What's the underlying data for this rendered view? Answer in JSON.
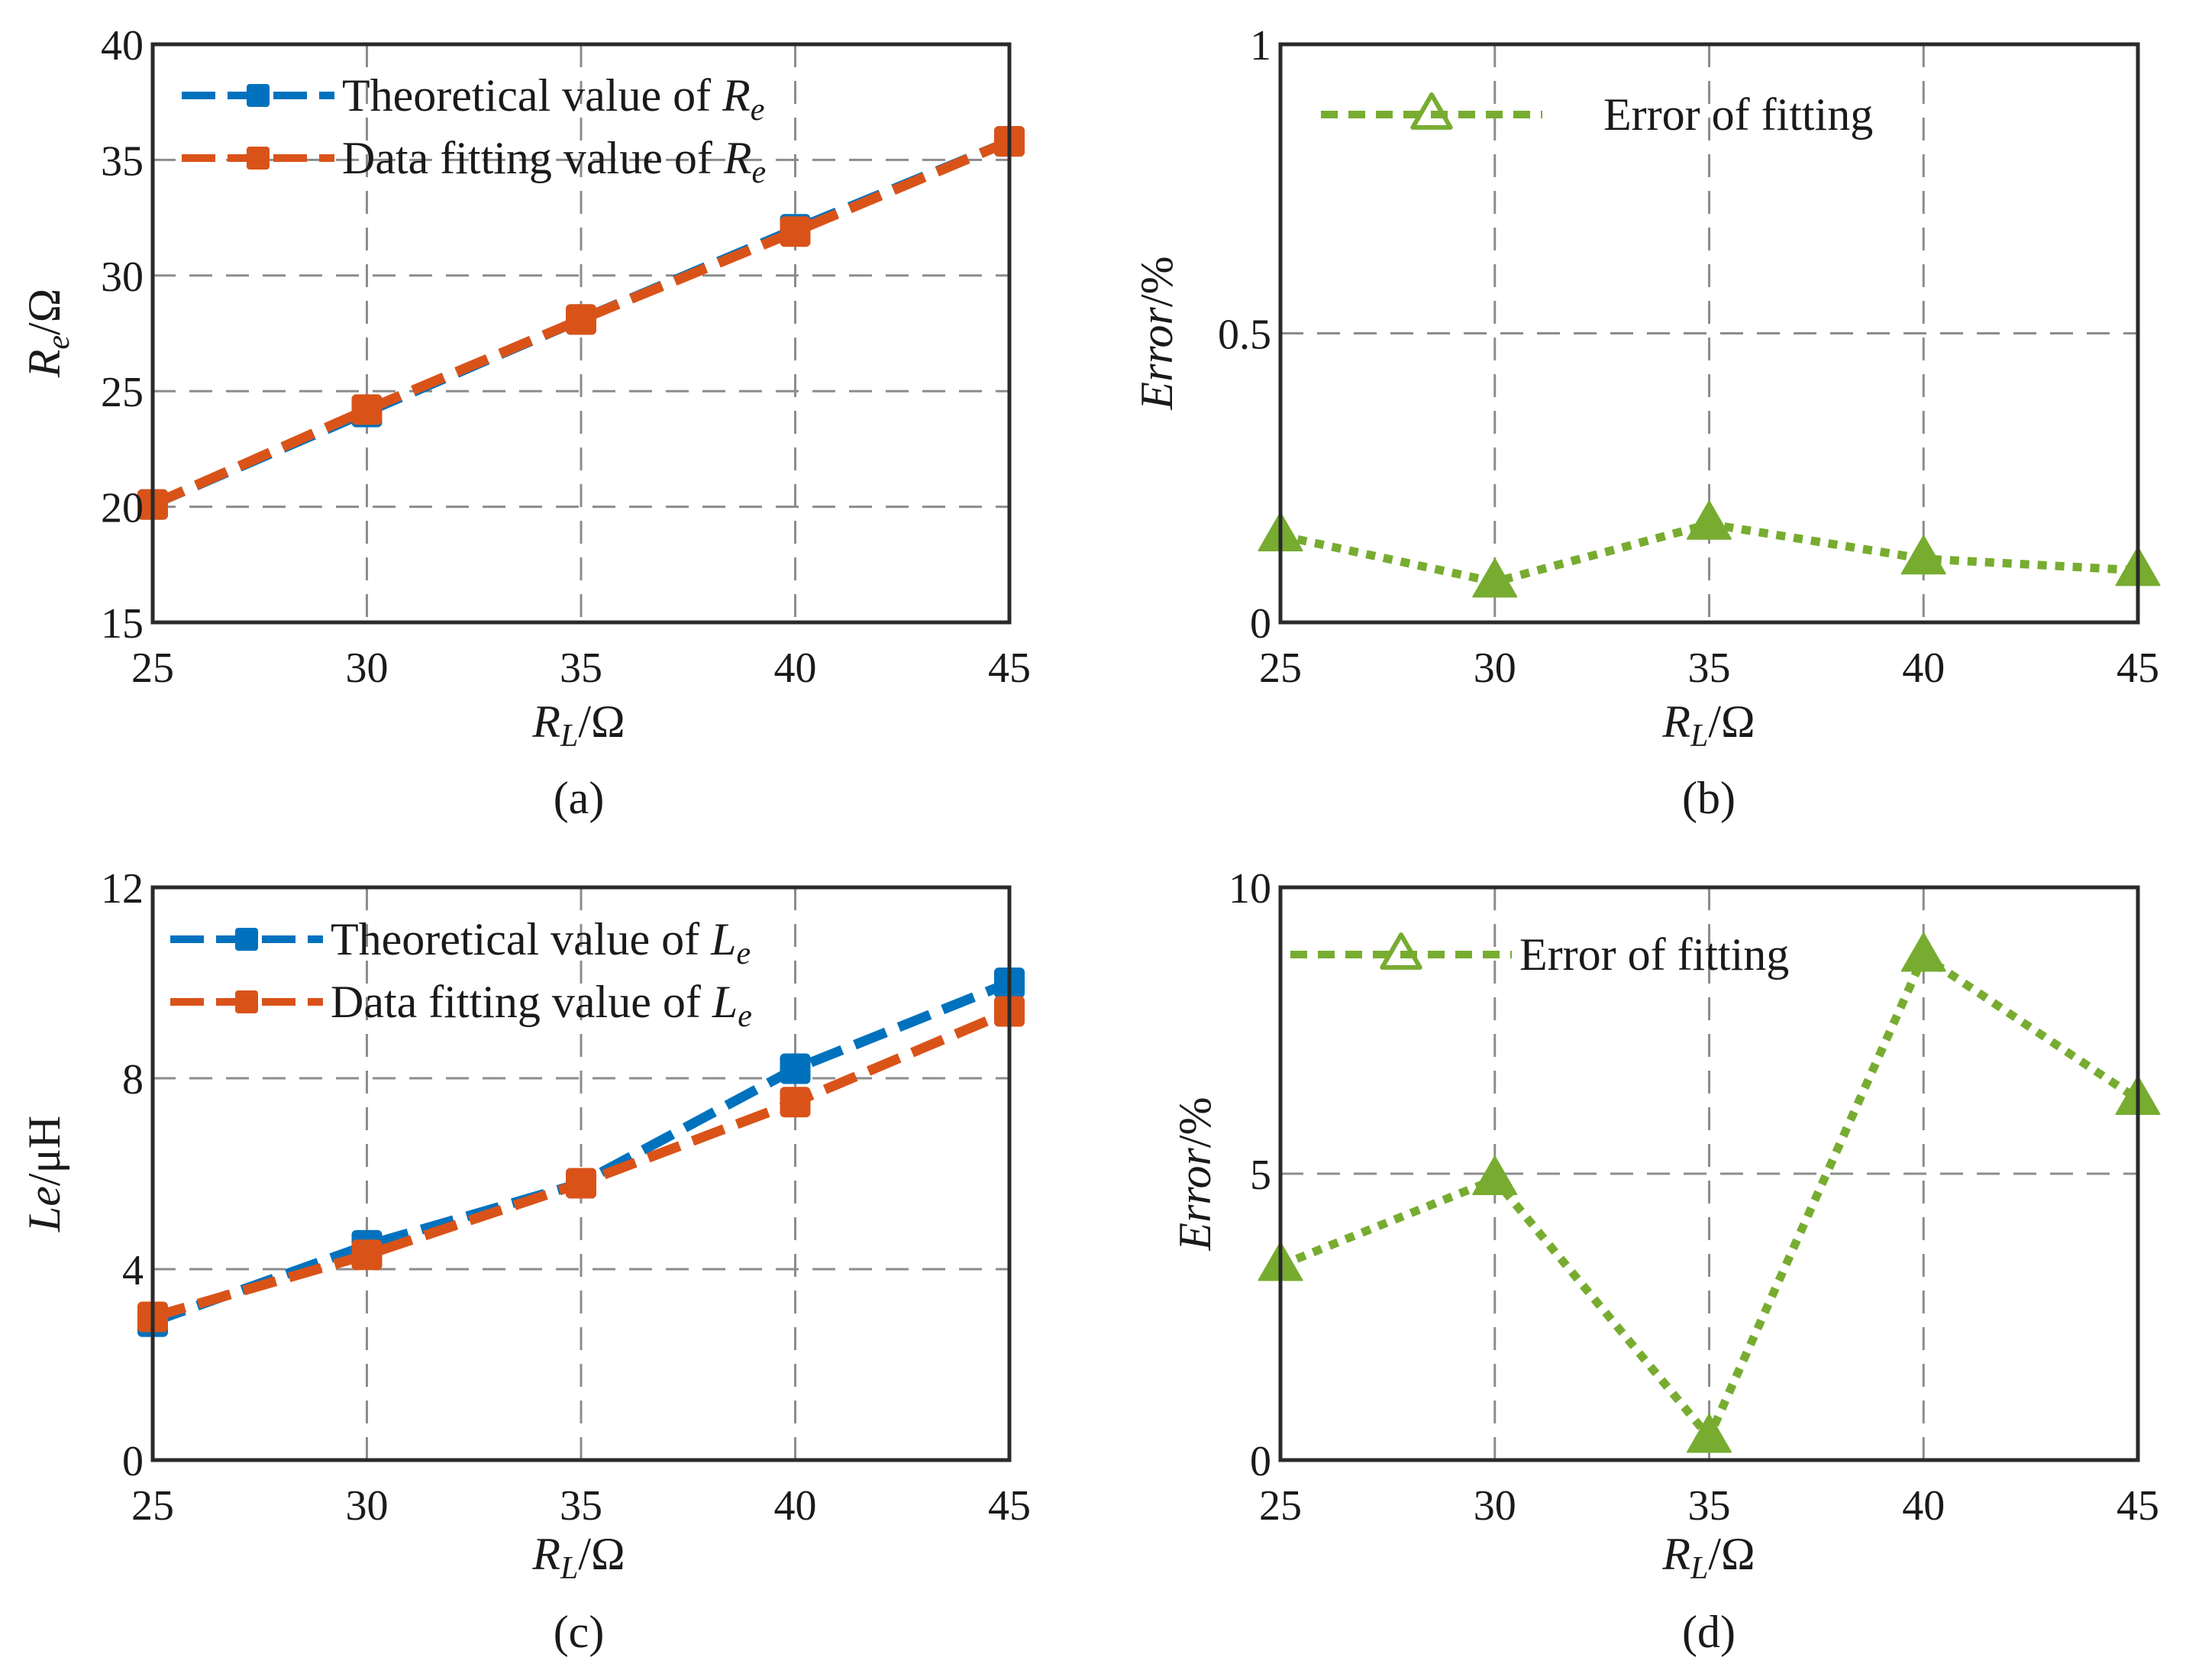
{
  "colors": {
    "theoretical": "#0072BD",
    "fitting": "#D95319",
    "error": "#77AC30"
  },
  "chart_data": [
    {
      "panel": "a",
      "type": "line",
      "caption": "(a)",
      "x": [
        25,
        30,
        35,
        40,
        45
      ],
      "xlim": [
        25,
        45
      ],
      "ylim": [
        15,
        40
      ],
      "xticks": [
        25,
        30,
        35,
        40,
        45
      ],
      "yticks": [
        15,
        20,
        25,
        30,
        35,
        40
      ],
      "xlabel": "R",
      "xlabel_sub": "L",
      "xlabel_unit": "/Ω",
      "ylabel": "R",
      "ylabel_sub": "e",
      "ylabel_unit": "/Ω",
      "legend_position": "top-left",
      "series": [
        {
          "name": "Theoretical value of ",
          "name_var": "R",
          "name_sub": "e",
          "color_key": "theoretical",
          "marker": "square",
          "values": [
            20.1,
            24.1,
            28.1,
            32.0,
            35.8
          ]
        },
        {
          "name": "Data fitting value of ",
          "name_var": "R",
          "name_sub": "e",
          "color_key": "fitting",
          "marker": "square",
          "values": [
            20.1,
            24.2,
            28.1,
            31.9,
            35.8
          ]
        }
      ]
    },
    {
      "panel": "b",
      "type": "line",
      "caption": "(b)",
      "x": [
        25,
        30,
        35,
        40,
        45
      ],
      "xlim": [
        25,
        45
      ],
      "ylim": [
        0,
        1
      ],
      "xticks": [
        25,
        30,
        35,
        40,
        45
      ],
      "yticks": [
        0,
        0.5,
        1
      ],
      "xlabel": "R",
      "xlabel_sub": "L",
      "xlabel_unit": "/Ω",
      "ylabel": "Error",
      "ylabel_sub": "",
      "ylabel_unit": "/%",
      "legend_position": "top",
      "series": [
        {
          "name": "Error of fitting",
          "color_key": "error",
          "marker": "triangle",
          "values": [
            0.15,
            0.07,
            0.17,
            0.11,
            0.09
          ]
        }
      ]
    },
    {
      "panel": "c",
      "type": "line",
      "caption": "(c)",
      "x": [
        25,
        30,
        35,
        40,
        45
      ],
      "xlim": [
        25,
        45
      ],
      "ylim": [
        0,
        12
      ],
      "xticks": [
        25,
        30,
        35,
        40,
        45
      ],
      "yticks": [
        0,
        4,
        8,
        12
      ],
      "xlabel": "R",
      "xlabel_sub": "L",
      "xlabel_unit": "/Ω",
      "ylabel": "Le",
      "ylabel_sub": "",
      "ylabel_unit": "/μH",
      "legend_position": "top-left",
      "series": [
        {
          "name": "Theoretical value of ",
          "name_var": "L",
          "name_sub": "e",
          "color_key": "theoretical",
          "marker": "square",
          "values": [
            2.9,
            4.5,
            5.8,
            8.2,
            10.0
          ]
        },
        {
          "name": "Data fitting value of ",
          "name_var": "L",
          "name_sub": "e",
          "color_key": "fitting",
          "marker": "square",
          "values": [
            3.0,
            4.3,
            5.8,
            7.5,
            9.4
          ]
        }
      ]
    },
    {
      "panel": "d",
      "type": "line",
      "caption": "(d)",
      "x": [
        25,
        30,
        35,
        40,
        45
      ],
      "xlim": [
        25,
        45
      ],
      "ylim": [
        0,
        10
      ],
      "xticks": [
        25,
        30,
        35,
        40,
        45
      ],
      "yticks": [
        0,
        5,
        10
      ],
      "xlabel": "R",
      "xlabel_sub": "L",
      "xlabel_unit": "/Ω",
      "ylabel": "Error",
      "ylabel_sub": "",
      "ylabel_unit": "/%",
      "legend_position": "top-left",
      "series": [
        {
          "name": "Error of fitting",
          "color_key": "error",
          "marker": "triangle",
          "values": [
            3.4,
            4.9,
            0.4,
            8.8,
            6.3
          ]
        }
      ]
    }
  ]
}
